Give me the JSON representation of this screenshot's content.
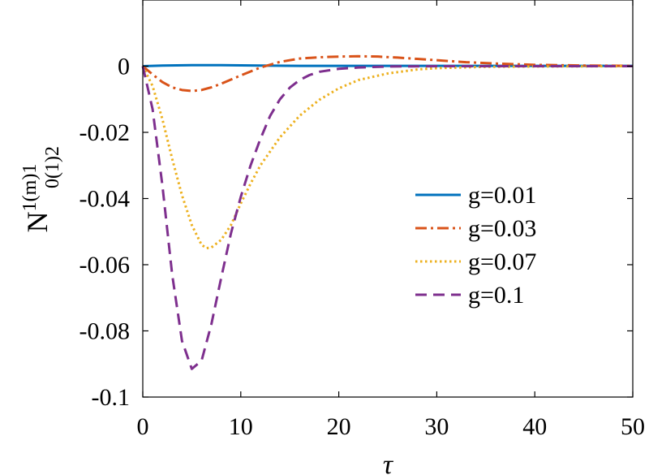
{
  "chart_data": {
    "type": "line",
    "title": "",
    "xlabel": "τ",
    "ylabel": {
      "base": "N",
      "superscript": "1(m)1",
      "subscript": "0(1)2"
    },
    "xlim": [
      0,
      50
    ],
    "ylim": [
      -0.1,
      0.02
    ],
    "xticks": [
      0,
      10,
      20,
      30,
      40,
      50
    ],
    "yticks": [
      0,
      -0.02,
      -0.04,
      -0.06,
      -0.08,
      -0.1
    ],
    "xtick_labels": [
      "0",
      "10",
      "20",
      "30",
      "40",
      "50"
    ],
    "ytick_labels": [
      "0",
      "-0.02",
      "-0.04",
      "-0.06",
      "-0.08",
      "-0.1"
    ],
    "grid": false,
    "legend_position": "right",
    "series": [
      {
        "name": "g=0.01",
        "color": "#0072BD",
        "style": "solid",
        "x": [
          0,
          2,
          5,
          8,
          12,
          16,
          20,
          25,
          30,
          35,
          40,
          45,
          50
        ],
        "y": [
          0,
          0.0002,
          0.0003,
          0.0003,
          0.0002,
          0.0001,
          0.0001,
          0.0001,
          0.0001,
          0.0001,
          0.0001,
          0.0001,
          0.0001
        ]
      },
      {
        "name": "g=0.03",
        "color": "#D95319",
        "style": "dashdot",
        "x": [
          0,
          1,
          2,
          3,
          4,
          5,
          6,
          7,
          8,
          10,
          12,
          14,
          16,
          18,
          20,
          22,
          24,
          26,
          28,
          30,
          33,
          36,
          40,
          45,
          50
        ],
        "y": [
          0,
          -0.0025,
          -0.0048,
          -0.0064,
          -0.0072,
          -0.0075,
          -0.0072,
          -0.0064,
          -0.0053,
          -0.0028,
          -0.0004,
          0.0013,
          0.0023,
          0.0027,
          0.0029,
          0.003,
          0.0029,
          0.0026,
          0.0022,
          0.0018,
          0.0012,
          0.0008,
          0.0004,
          0.0002,
          0.0001
        ]
      },
      {
        "name": "g=0.07",
        "color": "#EDB120",
        "style": "dotted",
        "x": [
          0,
          1,
          2,
          3,
          4,
          5,
          6,
          6.5,
          7,
          8,
          9,
          10,
          11,
          12,
          14,
          16,
          18,
          20,
          22,
          25,
          28,
          30,
          35,
          40,
          45,
          50
        ],
        "y": [
          0,
          -0.006,
          -0.016,
          -0.028,
          -0.039,
          -0.048,
          -0.054,
          -0.055,
          -0.0548,
          -0.0525,
          -0.048,
          -0.0415,
          -0.0355,
          -0.03,
          -0.0215,
          -0.015,
          -0.0102,
          -0.0067,
          -0.0042,
          -0.0022,
          -0.001,
          -0.0006,
          -0.0002,
          -0.0001,
          -5e-05,
          0
        ]
      },
      {
        "name": "g=0.1",
        "color": "#7E2F8E",
        "style": "dashed",
        "x": [
          0,
          1,
          2,
          3,
          4,
          5,
          6,
          7,
          8,
          9,
          10,
          11,
          12,
          13,
          14,
          15,
          16,
          17,
          18,
          20,
          22,
          25,
          30,
          40,
          50
        ],
        "y": [
          0,
          -0.013,
          -0.036,
          -0.063,
          -0.083,
          -0.0915,
          -0.089,
          -0.078,
          -0.064,
          -0.0505,
          -0.0395,
          -0.03,
          -0.022,
          -0.015,
          -0.01,
          -0.0065,
          -0.0042,
          -0.0027,
          -0.0017,
          -0.0008,
          -0.0004,
          -0.0001,
          0,
          0,
          0
        ]
      }
    ]
  }
}
